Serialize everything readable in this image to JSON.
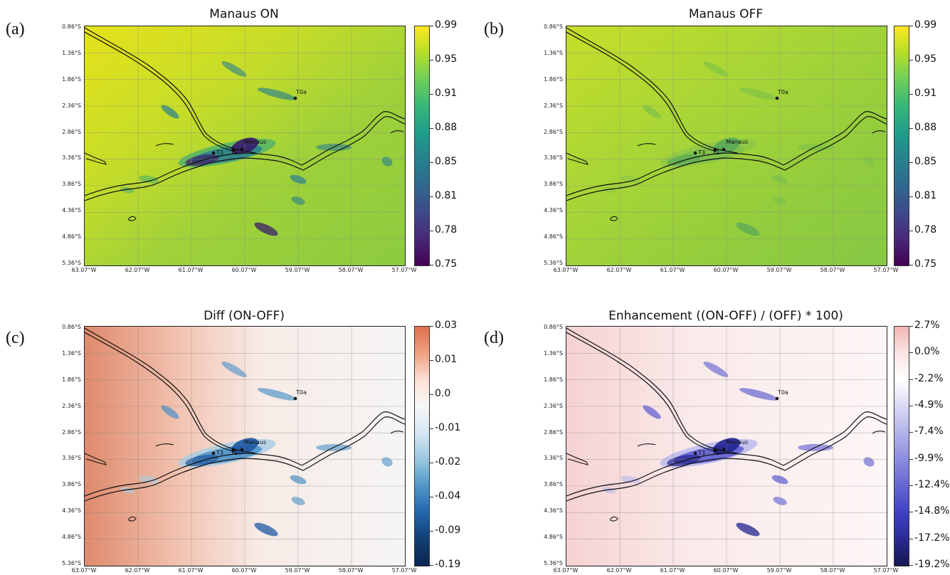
{
  "panels": [
    {
      "letter": "(a)",
      "title": "Manaus ON",
      "colorbar": [
        "0.99",
        "0.95",
        "0.91",
        "0.88",
        "0.85",
        "0.81",
        "0.78",
        "0.75"
      ],
      "colormap": "viridis"
    },
    {
      "letter": "(b)",
      "title": "Manaus OFF",
      "colorbar": [
        "0.99",
        "0.95",
        "0.91",
        "0.88",
        "0.85",
        "0.81",
        "0.78",
        "0.75"
      ],
      "colormap": "viridis"
    },
    {
      "letter": "(c)",
      "title": "Diff (ON-OFF)",
      "colorbar": [
        "0.03",
        "0.01",
        "0.0",
        "-0.01",
        "-0.02",
        "-0.04",
        "-0.09",
        "-0.19"
      ],
      "colormap": "RdBu_r"
    },
    {
      "letter": "(d)",
      "title": "Enhancement ((ON-OFF) / (OFF) * 100)",
      "colorbar": [
        "2.7%",
        "0.0%",
        "-2.2%",
        "-4.9%",
        "-7.4%",
        "-9.9%",
        "-12.4%",
        "-14.8%",
        "-17.2%",
        "-19.2%"
      ],
      "colormap": "bwr"
    }
  ],
  "lat_labels": [
    "0.86°S",
    "1.36°S",
    "1.86°S",
    "2.36°S",
    "2.86°S",
    "3.36°S",
    "3.86°S",
    "4.36°S",
    "4.86°S",
    "5.36°S"
  ],
  "lon_labels": [
    "63.07°W",
    "62.07°W",
    "61.07°W",
    "60.07°W",
    "59.07°W",
    "58.07°W",
    "57.07°W"
  ],
  "sites": {
    "manaus": "Manaus",
    "t0a": "T0a",
    "t3": "T3",
    "t2": "T2"
  },
  "colors": {
    "viridis_high": "#e8e419",
    "viridis_mid": "#9fd13a",
    "viridis_low": "#3b1c5a",
    "diff_pos": "#d96b4b",
    "diff_neg": "#1f5fa8",
    "enh_pos": "#f3c6c6",
    "enh_neg": "#2a2f9a"
  }
}
